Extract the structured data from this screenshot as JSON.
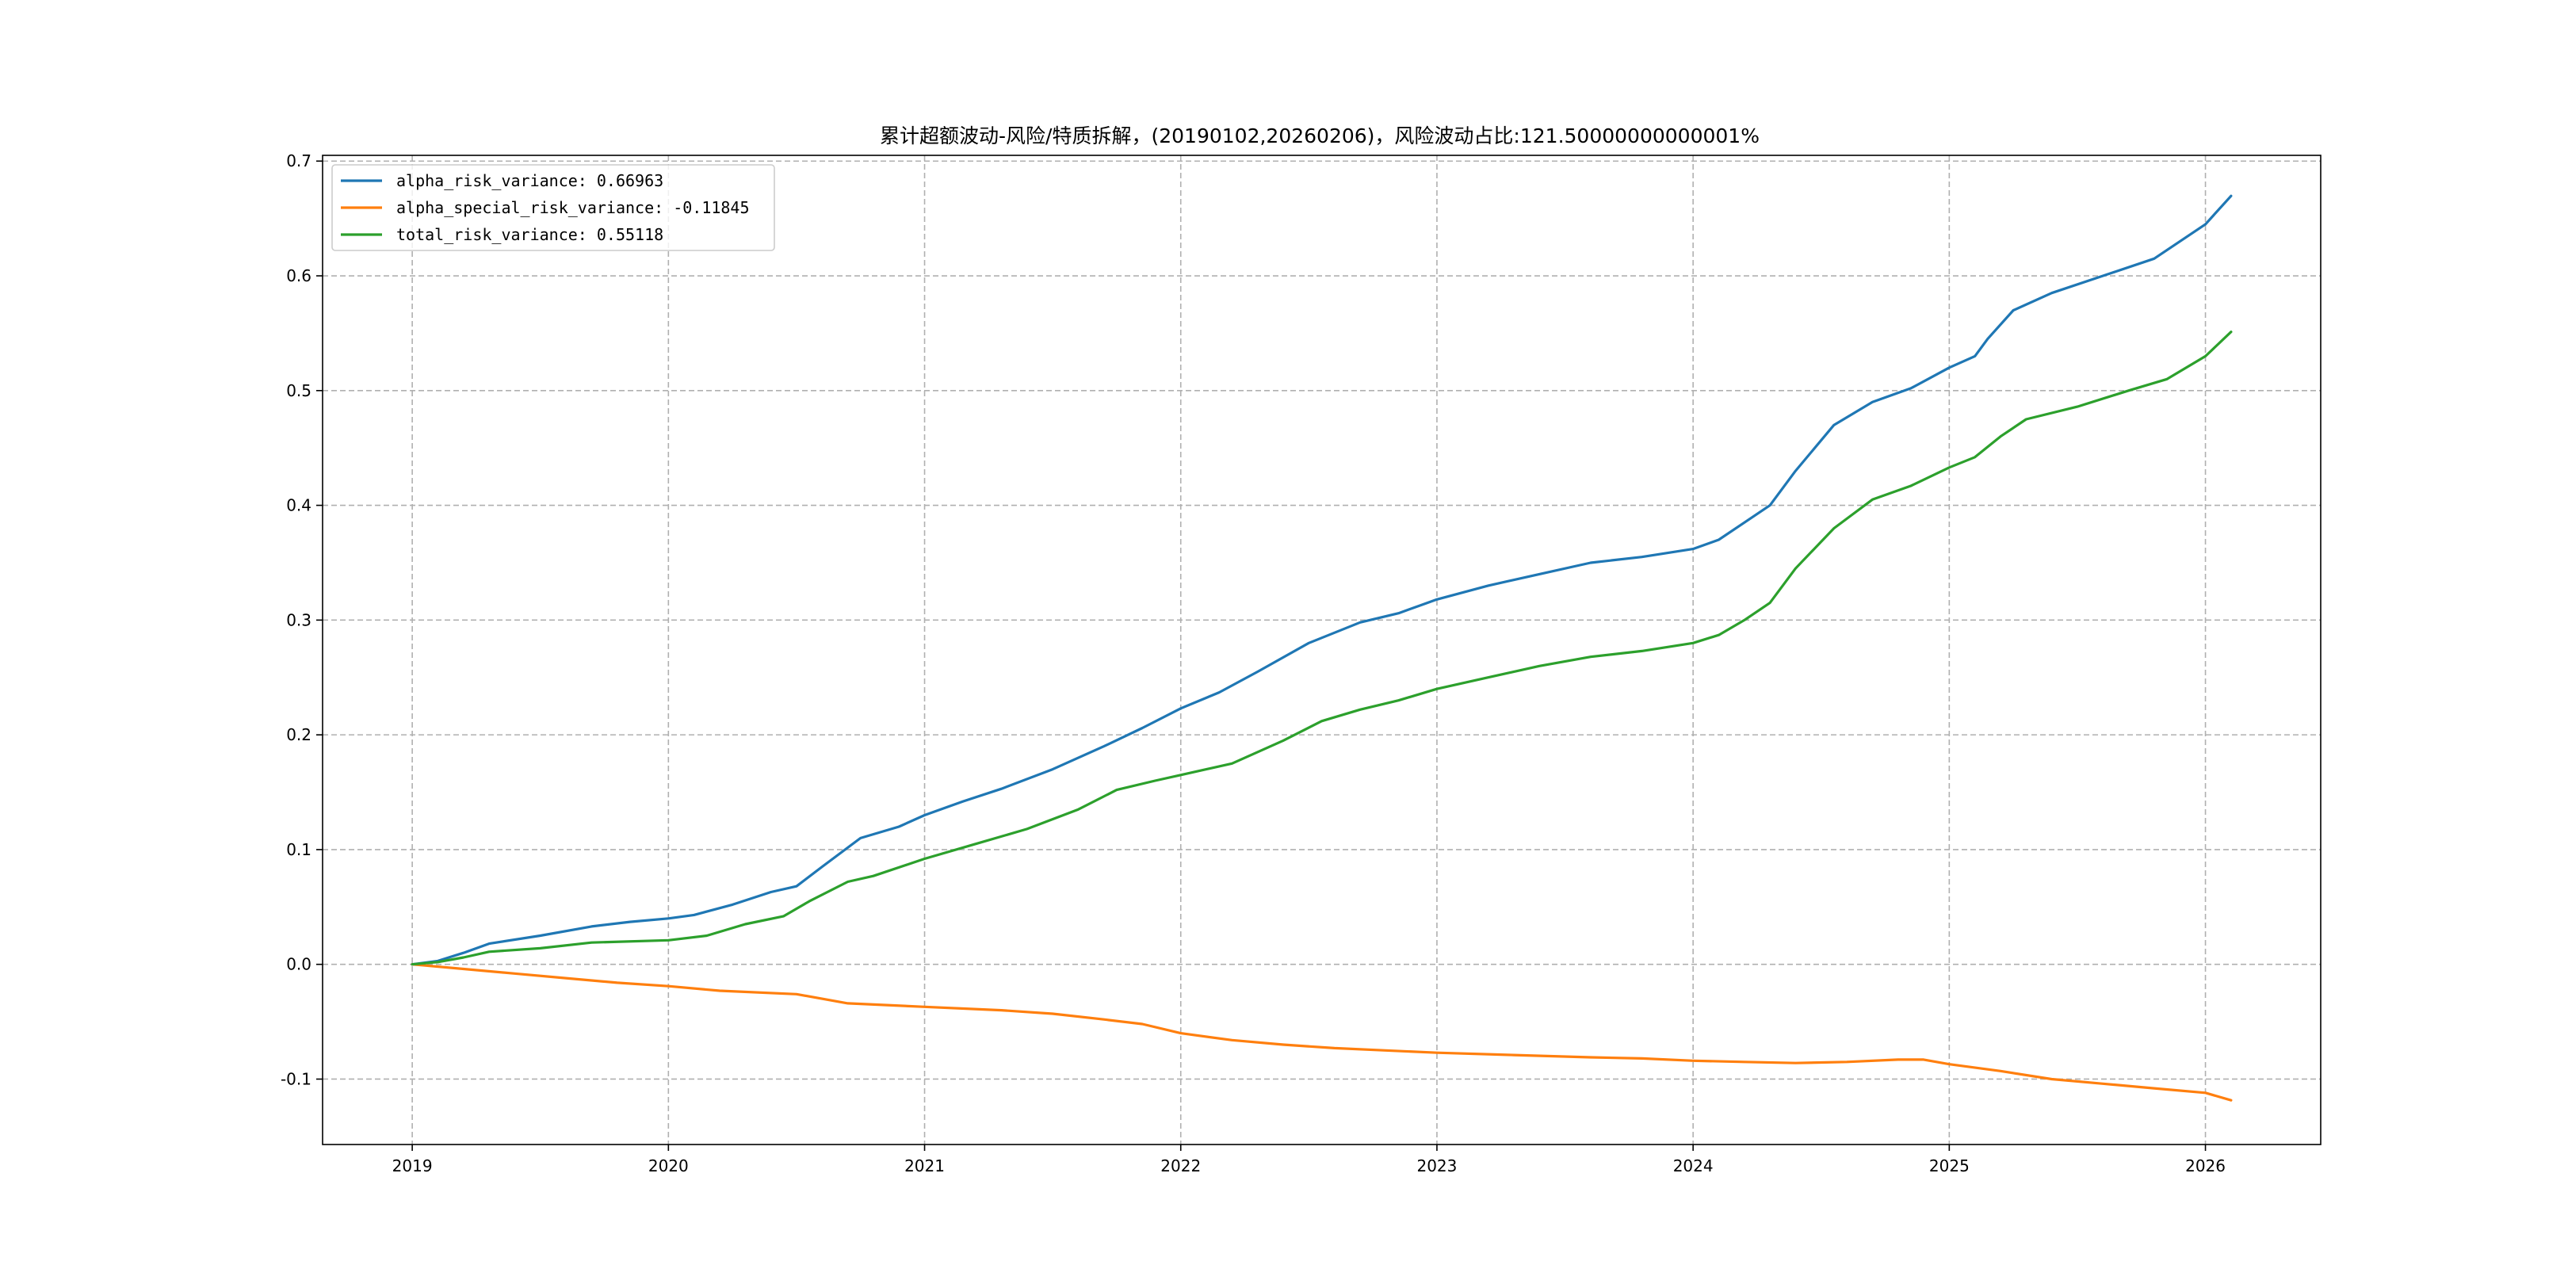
{
  "chart_data": {
    "type": "line",
    "title": "累计超额波动-风险/特质拆解，(20190102,20260206)，风险波动占比:121.50000000000001%",
    "xlabel": "",
    "ylabel": "",
    "x_ticks": [
      "2019",
      "2020",
      "2021",
      "2022",
      "2023",
      "2024",
      "2025",
      "2026"
    ],
    "y_ticks": [
      -0.1,
      0.0,
      0.1,
      0.2,
      0.3,
      0.4,
      0.5,
      0.6,
      0.7
    ],
    "y_tick_labels": [
      "-0.1",
      "0.0",
      "0.1",
      "0.2",
      "0.3",
      "0.4",
      "0.5",
      "0.6",
      "0.7"
    ],
    "xlim": [
      2018.65,
      2026.45
    ],
    "ylim": [
      -0.157,
      0.705
    ],
    "grid": true,
    "legend_position": "top-left",
    "series": [
      {
        "name": "alpha_risk_variance: 0.66963",
        "color": "#1f77b4",
        "x": [
          2019.0,
          2019.1,
          2019.2,
          2019.3,
          2019.5,
          2019.7,
          2019.85,
          2020.0,
          2020.1,
          2020.25,
          2020.4,
          2020.5,
          2020.6,
          2020.75,
          2020.9,
          2021.0,
          2021.15,
          2021.3,
          2021.5,
          2021.7,
          2021.85,
          2022.0,
          2022.15,
          2022.3,
          2022.5,
          2022.7,
          2022.85,
          2023.0,
          2023.2,
          2023.4,
          2023.6,
          2023.8,
          2024.0,
          2024.1,
          2024.2,
          2024.3,
          2024.4,
          2024.55,
          2024.7,
          2024.85,
          2025.0,
          2025.1,
          2025.15,
          2025.25,
          2025.4,
          2025.6,
          2025.8,
          2026.0,
          2026.1
        ],
        "values": [
          0.0,
          0.003,
          0.01,
          0.018,
          0.025,
          0.033,
          0.037,
          0.04,
          0.043,
          0.052,
          0.063,
          0.068,
          0.085,
          0.11,
          0.12,
          0.13,
          0.142,
          0.153,
          0.17,
          0.19,
          0.206,
          0.223,
          0.237,
          0.255,
          0.28,
          0.298,
          0.306,
          0.318,
          0.33,
          0.34,
          0.35,
          0.355,
          0.362,
          0.37,
          0.385,
          0.4,
          0.43,
          0.47,
          0.49,
          0.502,
          0.52,
          0.53,
          0.545,
          0.57,
          0.585,
          0.6,
          0.615,
          0.645,
          0.66963
        ]
      },
      {
        "name": "alpha_special_risk_variance: -0.11845",
        "color": "#ff7f0e",
        "x": [
          2019.0,
          2019.2,
          2019.4,
          2019.6,
          2019.8,
          2020.0,
          2020.2,
          2020.5,
          2020.7,
          2021.0,
          2021.3,
          2021.5,
          2021.7,
          2021.85,
          2022.0,
          2022.2,
          2022.4,
          2022.6,
          2022.8,
          2023.0,
          2023.3,
          2023.6,
          2023.8,
          2024.0,
          2024.2,
          2024.4,
          2024.6,
          2024.8,
          2024.9,
          2025.0,
          2025.2,
          2025.4,
          2025.6,
          2025.8,
          2026.0,
          2026.1
        ],
        "values": [
          0.0,
          -0.004,
          -0.008,
          -0.012,
          -0.016,
          -0.019,
          -0.023,
          -0.026,
          -0.034,
          -0.037,
          -0.04,
          -0.043,
          -0.048,
          -0.052,
          -0.06,
          -0.066,
          -0.07,
          -0.073,
          -0.075,
          -0.077,
          -0.079,
          -0.081,
          -0.082,
          -0.084,
          -0.085,
          -0.086,
          -0.085,
          -0.083,
          -0.083,
          -0.087,
          -0.093,
          -0.1,
          -0.104,
          -0.108,
          -0.112,
          -0.11845
        ]
      },
      {
        "name": "total_risk_variance: 0.55118",
        "color": "#2ca02c",
        "x": [
          2019.0,
          2019.1,
          2019.2,
          2019.3,
          2019.5,
          2019.7,
          2020.0,
          2020.15,
          2020.3,
          2020.45,
          2020.55,
          2020.7,
          2020.8,
          2021.0,
          2021.2,
          2021.4,
          2021.6,
          2021.75,
          2021.9,
          2022.0,
          2022.2,
          2022.4,
          2022.55,
          2022.7,
          2022.85,
          2023.0,
          2023.2,
          2023.4,
          2023.6,
          2023.8,
          2024.0,
          2024.1,
          2024.2,
          2024.3,
          2024.4,
          2024.55,
          2024.7,
          2024.85,
          2025.0,
          2025.1,
          2025.2,
          2025.3,
          2025.5,
          2025.7,
          2025.85,
          2026.0,
          2026.1
        ],
        "values": [
          0.0,
          0.002,
          0.006,
          0.011,
          0.014,
          0.019,
          0.021,
          0.025,
          0.035,
          0.042,
          0.055,
          0.072,
          0.077,
          0.092,
          0.105,
          0.118,
          0.135,
          0.152,
          0.16,
          0.165,
          0.175,
          0.195,
          0.212,
          0.222,
          0.23,
          0.24,
          0.25,
          0.26,
          0.268,
          0.273,
          0.28,
          0.287,
          0.3,
          0.315,
          0.345,
          0.38,
          0.405,
          0.417,
          0.433,
          0.442,
          0.46,
          0.475,
          0.486,
          0.5,
          0.51,
          0.53,
          0.55118
        ]
      }
    ]
  }
}
